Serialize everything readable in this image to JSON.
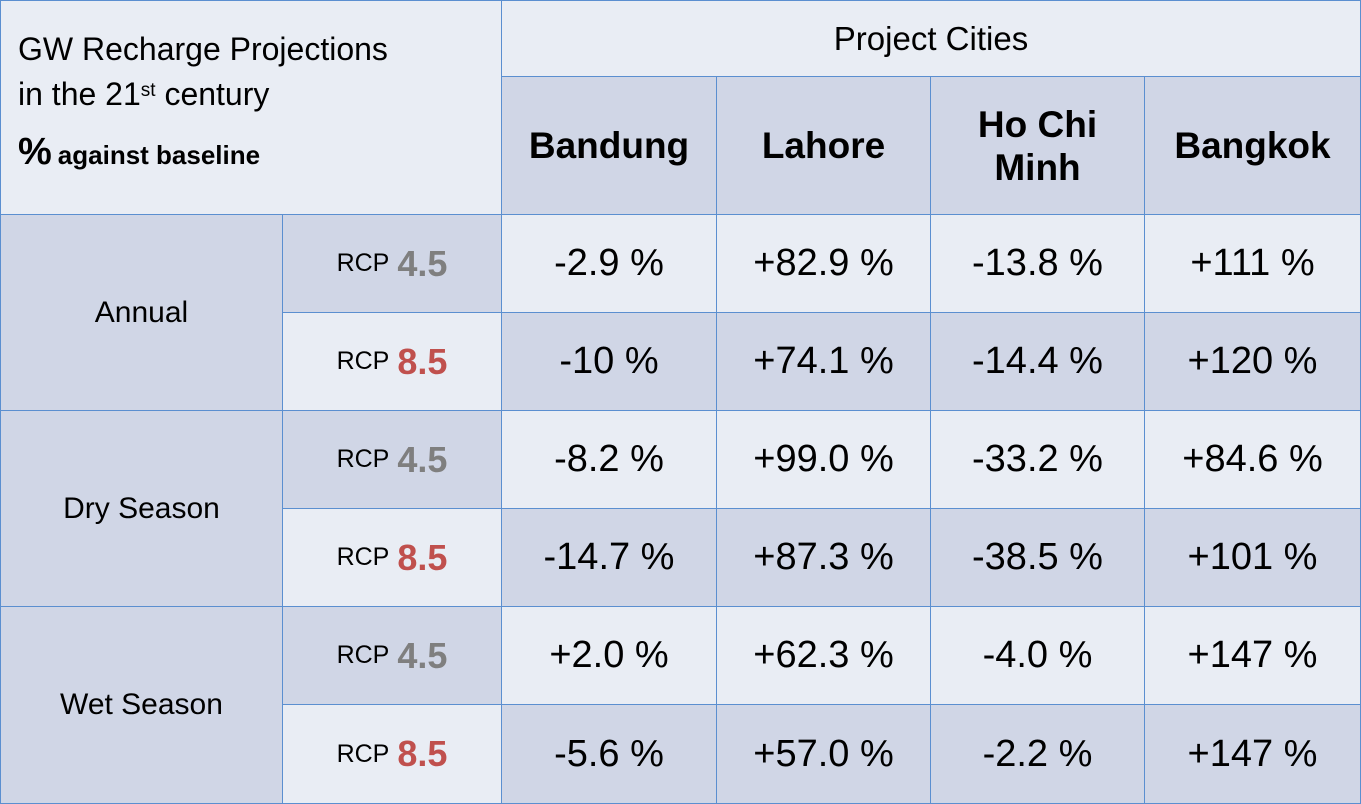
{
  "header": {
    "title_line1": "GW Recharge Projections",
    "title_line2_pre": "in the 21",
    "title_line2_sup": "st",
    "title_line2_post": " century",
    "subtitle_pct": "%",
    "subtitle_text": "against baseline",
    "group_label": "Project Cities"
  },
  "cities": [
    "Bandung",
    "Lahore",
    "Ho Chi Minh",
    "Bangkok"
  ],
  "rcp_prefix": "RCP",
  "scenario_colors": {
    "4.5": "#7f7f7f",
    "8.5": "#c0504d"
  },
  "rows": [
    {
      "category": "Annual",
      "rcp": "4.5",
      "values": [
        "-2.9 %",
        "+82.9 %",
        "-13.8 %",
        "+111 %"
      ]
    },
    {
      "category": "Annual",
      "rcp": "8.5",
      "values": [
        "-10 %",
        "+74.1 %",
        "-14.4 %",
        "+120 %"
      ]
    },
    {
      "category": "Dry Season",
      "rcp": "4.5",
      "values": [
        "-8.2 %",
        "+99.0 %",
        "-33.2 %",
        "+84.6 %"
      ]
    },
    {
      "category": "Dry Season",
      "rcp": "8.5",
      "values": [
        "-14.7 %",
        "+87.3 %",
        "-38.5 %",
        "+101 %"
      ]
    },
    {
      "category": "Wet Season",
      "rcp": "4.5",
      "values": [
        "+2.0 %",
        "+62.3 %",
        "-4.0 %",
        "+147 %"
      ]
    },
    {
      "category": "Wet Season",
      "rcp": "8.5",
      "values": [
        "-5.6 %",
        "+57.0 %",
        "-2.2 %",
        "+147 %"
      ]
    }
  ],
  "categories": [
    "Annual",
    "Dry Season",
    "Wet Season"
  ]
}
